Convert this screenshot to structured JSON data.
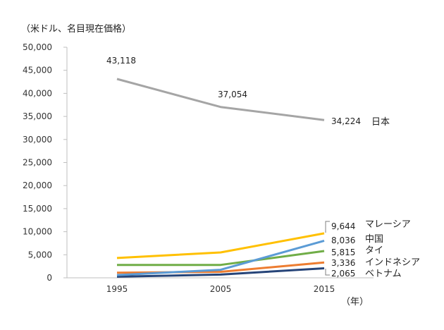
{
  "chart_data": {
    "type": "line",
    "title": "",
    "ylabel": "（米ドル、名目現在価格）",
    "xlabel": "（年）",
    "x": [
      "1995",
      "2005",
      "2015"
    ],
    "ylim": [
      0,
      50000
    ],
    "yticks": [
      "0",
      "5,000",
      "10,000",
      "15,000",
      "20,000",
      "25,000",
      "30,000",
      "35,000",
      "40,000",
      "45,000",
      "50,000"
    ],
    "grid": false,
    "legend": "none (series labels at line ends)",
    "series": [
      {
        "name": "日本",
        "values": [
          43118,
          37054,
          34224
        ],
        "color": "#a5a5a5",
        "data_labels": [
          "43,118",
          "37,054",
          "34,224"
        ]
      },
      {
        "name": "マレーシア",
        "values": [
          4300,
          5500,
          9644
        ],
        "color": "#ffc000",
        "data_labels": [
          "",
          "",
          "9,644"
        ]
      },
      {
        "name": "中国",
        "values": [
          600,
          1750,
          8036
        ],
        "color": "#5b9bd5",
        "data_labels": [
          "",
          "",
          "8,036"
        ]
      },
      {
        "name": "タイ",
        "values": [
          2800,
          2800,
          5815
        ],
        "color": "#70ad47",
        "data_labels": [
          "",
          "",
          "5,815"
        ]
      },
      {
        "name": "インドネシア",
        "values": [
          1100,
          1300,
          3336
        ],
        "color": "#ed7d31",
        "data_labels": [
          "",
          "",
          "3,336"
        ]
      },
      {
        "name": "ベトナム",
        "values": [
          250,
          700,
          2065
        ],
        "color": "#264478",
        "data_labels": [
          "",
          "",
          "2,065"
        ]
      }
    ]
  }
}
